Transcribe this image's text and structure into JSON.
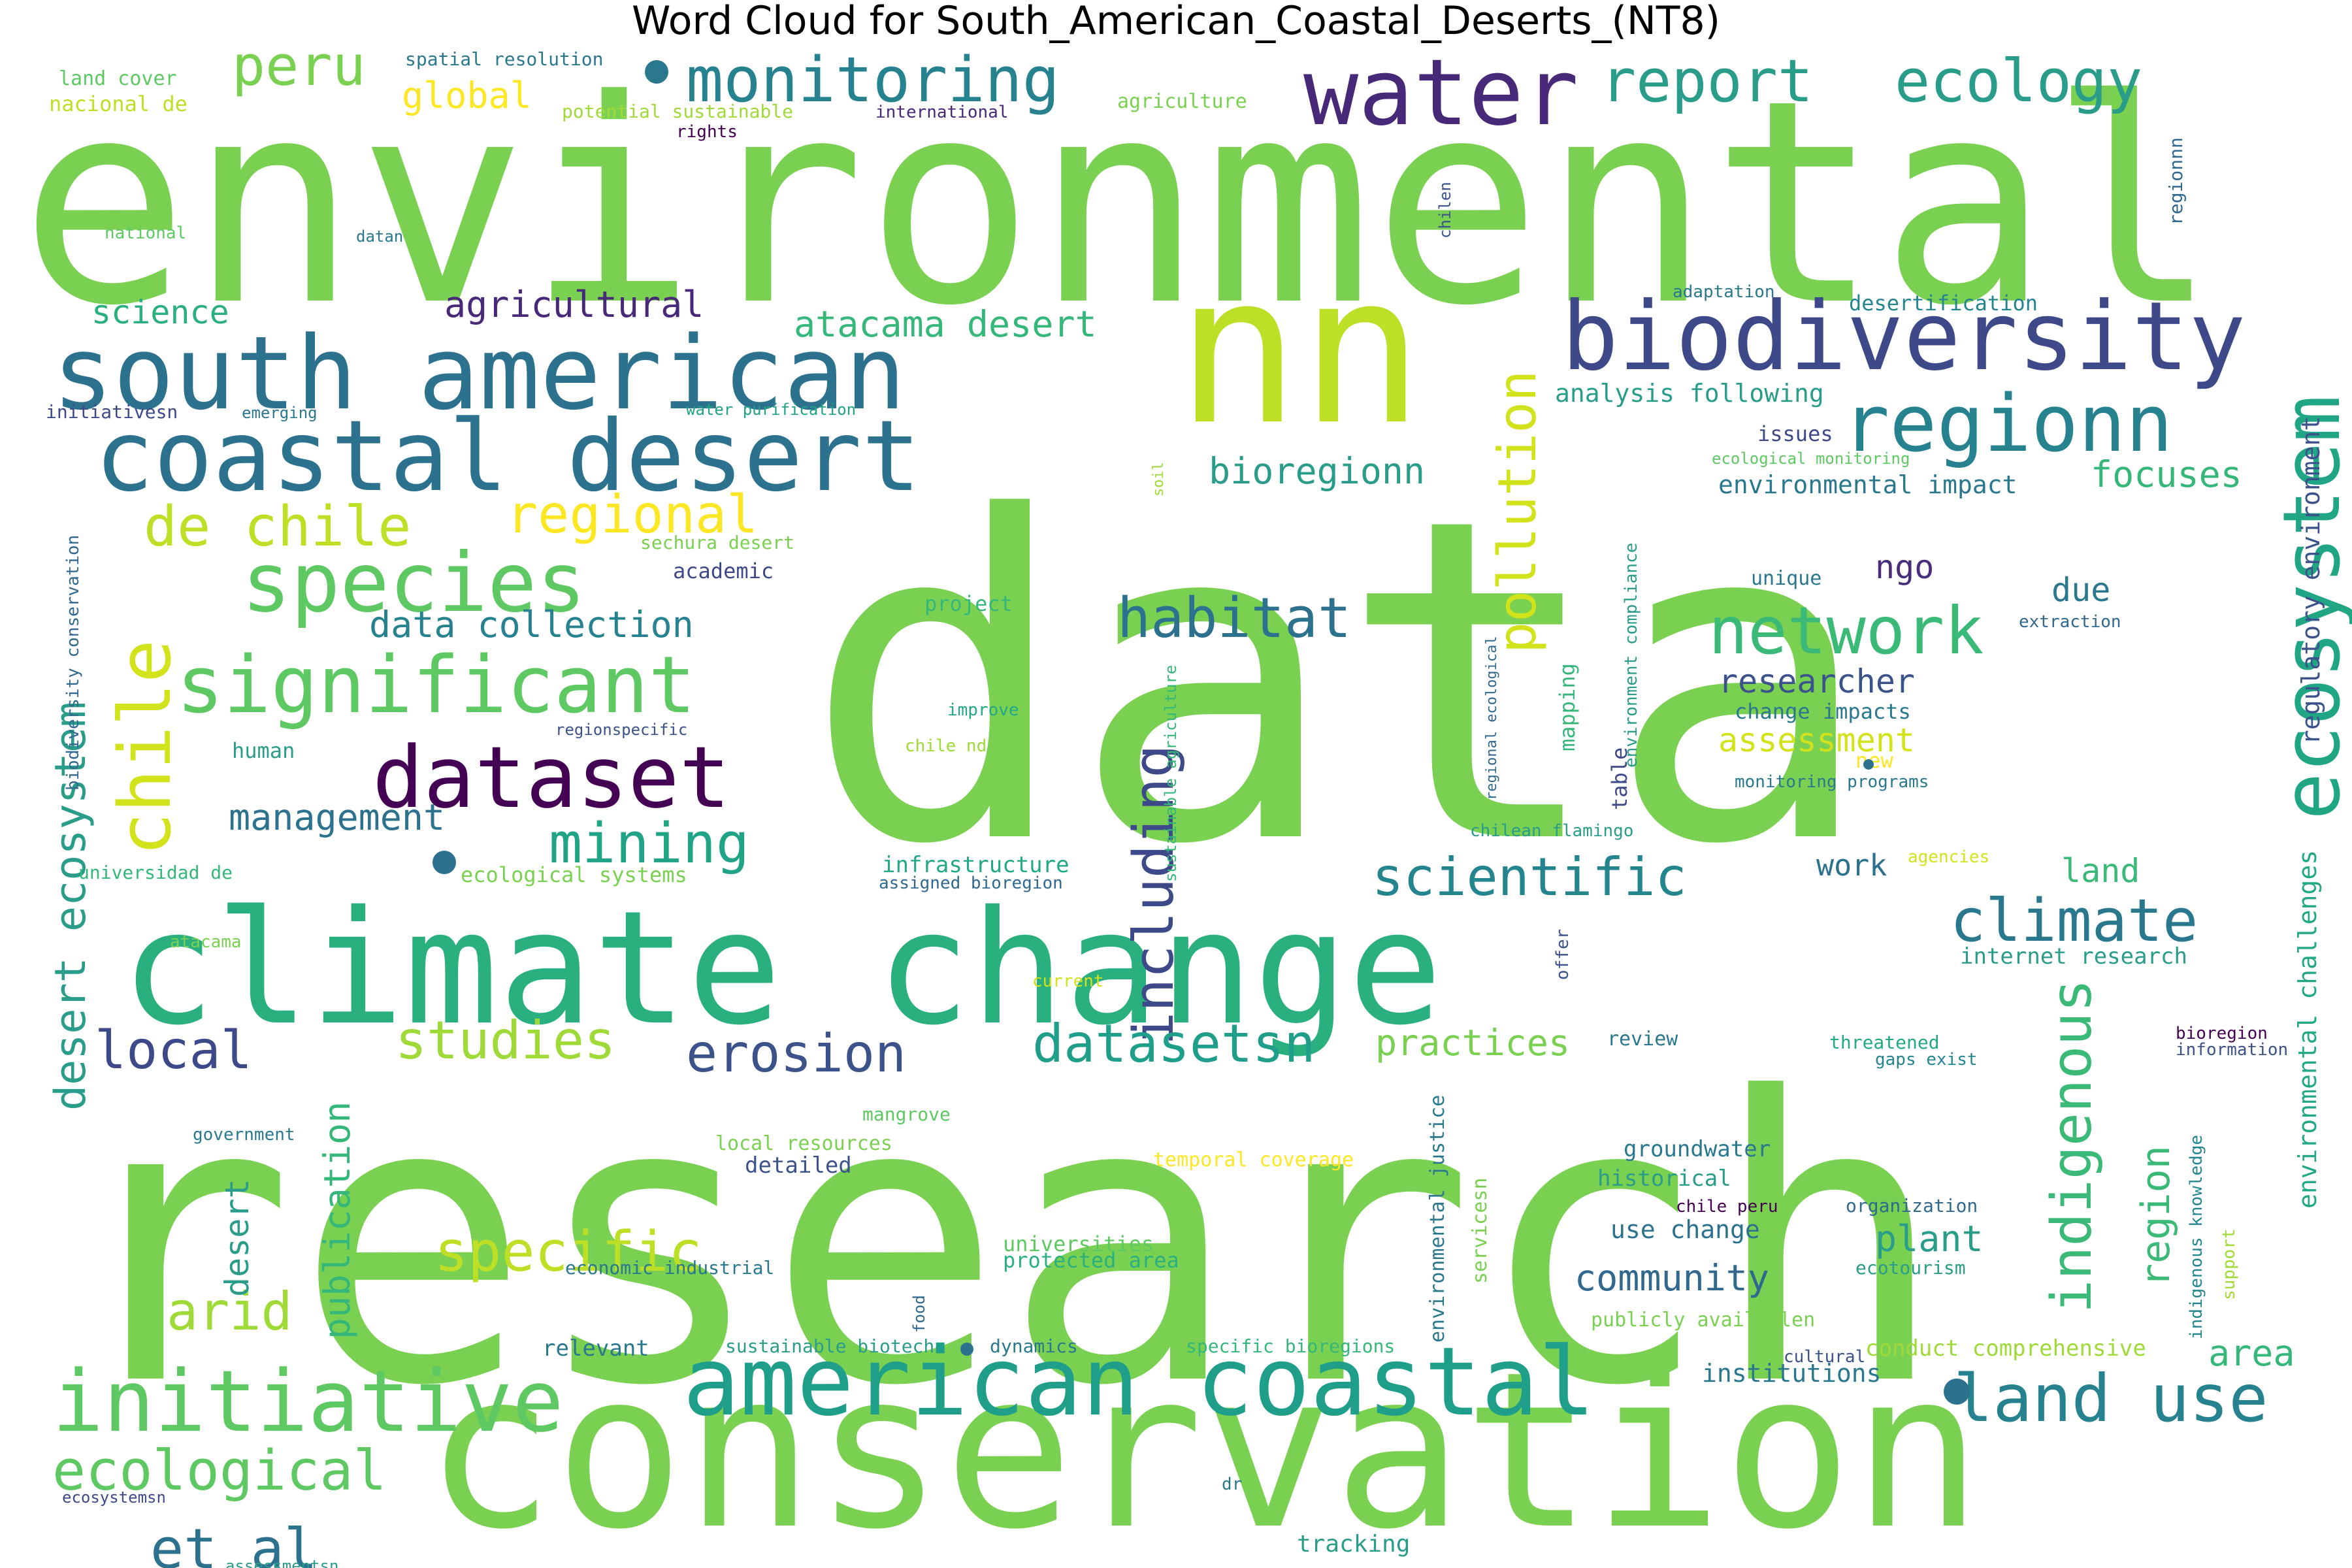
{
  "chart_data": {
    "type": "wordcloud",
    "title": "Word Cloud for South_American_Coastal_Deserts_(NT8)",
    "colormap": "viridis",
    "background": "#ffffff",
    "words": [
      {
        "text": "data",
        "weight": 100,
        "color": "#7ad151"
      },
      {
        "text": "research",
        "weight": 84,
        "color": "#7ad151"
      },
      {
        "text": "environmental",
        "weight": 68,
        "color": "#7ad151"
      },
      {
        "text": "conservation",
        "weight": 60,
        "color": "#7ad151"
      },
      {
        "text": "climate change",
        "weight": 42,
        "color": "#2ab07f"
      },
      {
        "text": "nn",
        "weight": 40,
        "color": "#bddf26"
      },
      {
        "text": "water",
        "weight": 20,
        "color": "#482878"
      },
      {
        "text": "south american",
        "weight": 20,
        "color": "#2c728e"
      },
      {
        "text": "biodiversity",
        "weight": 18,
        "color": "#3e4989"
      },
      {
        "text": "coastal desert",
        "weight": 19,
        "color": "#2c728e"
      },
      {
        "text": "american coastal",
        "weight": 19,
        "color": "#1f9e89"
      },
      {
        "text": "significant",
        "weight": 16,
        "color": "#5ec962"
      },
      {
        "text": "species",
        "weight": 15,
        "color": "#5ec962"
      },
      {
        "text": "initiative",
        "weight": 16,
        "color": "#5ec962"
      },
      {
        "text": "dataset",
        "weight": 14,
        "color": "#440154"
      },
      {
        "text": "regionn",
        "weight": 14,
        "color": "#26828e"
      },
      {
        "text": "ecosystem",
        "weight": 13,
        "color": "#21a685"
      },
      {
        "text": "monitoring",
        "weight": 11,
        "color": "#26828e"
      },
      {
        "text": "report",
        "weight": 10,
        "color": "#2a9d8a"
      },
      {
        "text": "ecology",
        "weight": 10,
        "color": "#2a9d8a"
      },
      {
        "text": "chile",
        "weight": 13,
        "color": "#d2e21b"
      },
      {
        "text": "network",
        "weight": 11,
        "color": "#3aba76"
      },
      {
        "text": "land use",
        "weight": 11,
        "color": "#26828e"
      },
      {
        "text": "including",
        "weight": 10,
        "color": "#3e4989"
      },
      {
        "text": "climate",
        "weight": 10,
        "color": "#2a788e"
      },
      {
        "text": "indigenous",
        "weight": 10,
        "color": "#3aba76"
      },
      {
        "text": "conservation",
        "weight": 60,
        "color": "#7ad151"
      },
      {
        "text": "ecological",
        "weight": 9,
        "color": "#5ec962"
      },
      {
        "text": "pollution",
        "weight": 9,
        "color": "#d2e21b"
      },
      {
        "text": "de chile",
        "weight": 9,
        "color": "#bddf26"
      },
      {
        "text": "regional",
        "weight": 9,
        "color": "#fde725"
      },
      {
        "text": "peru",
        "weight": 9,
        "color": "#7ad151"
      },
      {
        "text": "mining",
        "weight": 9,
        "color": "#20a386"
      },
      {
        "text": "habitat",
        "weight": 9,
        "color": "#2c728e"
      },
      {
        "text": "scientific",
        "weight": 8,
        "color": "#25858e"
      },
      {
        "text": "erosion",
        "weight": 8,
        "color": "#3b528b"
      },
      {
        "text": "datasetsn",
        "weight": 8,
        "color": "#1f9e89"
      },
      {
        "text": "studies",
        "weight": 8,
        "color": "#a0da39"
      },
      {
        "text": "specific",
        "weight": 8,
        "color": "#bddf26"
      },
      {
        "text": "local",
        "weight": 8,
        "color": "#3e4989"
      },
      {
        "text": "arid",
        "weight": 8,
        "color": "#a0da39"
      },
      {
        "text": "et al",
        "weight": 8,
        "color": "#2c728e"
      },
      {
        "text": "desert ecosystem",
        "weight": 6,
        "color": "#2a9d8a"
      },
      {
        "text": "atacama desert",
        "weight": 5,
        "color": "#35b779"
      },
      {
        "text": "agricultural",
        "weight": 5,
        "color": "#482878"
      },
      {
        "text": "data collection",
        "weight": 5,
        "color": "#26828e"
      },
      {
        "text": "management",
        "weight": 5,
        "color": "#2c728e"
      },
      {
        "text": "bioregionn",
        "weight": 5,
        "color": "#2a9d8a"
      },
      {
        "text": "focuses",
        "weight": 5,
        "color": "#35b779"
      },
      {
        "text": "region",
        "weight": 5,
        "color": "#3aba76"
      },
      {
        "text": "plant",
        "weight": 5,
        "color": "#2a9d8a"
      },
      {
        "text": "community",
        "weight": 5,
        "color": "#31688e"
      },
      {
        "text": "publication",
        "weight": 5,
        "color": "#35b779"
      },
      {
        "text": "practices",
        "weight": 5,
        "color": "#7ad151"
      },
      {
        "text": "researcher",
        "weight": 5,
        "color": "#3b528b"
      },
      {
        "text": "assessment",
        "weight": 5,
        "color": "#d2e21b"
      },
      {
        "text": "desert",
        "weight": 5,
        "color": "#2a9d8a"
      },
      {
        "text": "global",
        "weight": 5,
        "color": "#fde725"
      },
      {
        "text": "science",
        "weight": 4,
        "color": "#2ab07f"
      },
      {
        "text": "due",
        "weight": 4,
        "color": "#2a788e"
      },
      {
        "text": "ngo",
        "weight": 4,
        "color": "#472d7b"
      },
      {
        "text": "work",
        "weight": 4,
        "color": "#2c728e"
      },
      {
        "text": "land",
        "weight": 4,
        "color": "#3aba76"
      },
      {
        "text": "area",
        "weight": 4,
        "color": "#35b779"
      },
      {
        "text": "environmental challenges",
        "weight": 3,
        "color": "#22a884"
      },
      {
        "text": "regulatory environment",
        "weight": 3,
        "color": "#3b528b"
      }
    ]
  },
  "small_words": [
    {
      "text": "land cover",
      "color": "#5ec962"
    },
    {
      "text": "spatial resolution",
      "color": "#2a788e"
    },
    {
      "text": "nacional de",
      "color": "#bddf26"
    },
    {
      "text": "potential sustainable",
      "color": "#a0da39"
    },
    {
      "text": "international",
      "color": "#482878"
    },
    {
      "text": "agriculture",
      "color": "#7ad151"
    },
    {
      "text": "rights",
      "color": "#440154"
    },
    {
      "text": "national",
      "color": "#5ec962"
    },
    {
      "text": "datan",
      "color": "#2a788e"
    },
    {
      "text": "chilen",
      "color": "#3b528b"
    },
    {
      "text": "regionnn",
      "color": "#31688e"
    },
    {
      "text": "adaptation",
      "color": "#2a788e"
    },
    {
      "text": "desertification",
      "color": "#25858e"
    },
    {
      "text": "initiativesn",
      "color": "#3e4989"
    },
    {
      "text": "emerging",
      "color": "#2a788e"
    },
    {
      "text": "water purification",
      "color": "#20a386"
    },
    {
      "text": "analysis following",
      "color": "#2a9d8a"
    },
    {
      "text": "issues",
      "color": "#3e4989"
    },
    {
      "text": "ecological monitoring",
      "color": "#5ec962"
    },
    {
      "text": "environmental impact",
      "color": "#2a788e"
    },
    {
      "text": "soil",
      "color": "#a0da39"
    },
    {
      "text": "biodiversity conservation",
      "color": "#31688e"
    },
    {
      "text": "sechura desert",
      "color": "#7ad151"
    },
    {
      "text": "academic",
      "color": "#3e4989"
    },
    {
      "text": "unique",
      "color": "#2a788e"
    },
    {
      "text": "project",
      "color": "#35b779"
    },
    {
      "text": "environment compliance",
      "color": "#2a9d8a"
    },
    {
      "text": "extraction",
      "color": "#31688e"
    },
    {
      "text": "change impacts",
      "color": "#2a788e"
    },
    {
      "text": "improve",
      "color": "#22a884"
    },
    {
      "text": "regionspecific",
      "color": "#3b528b"
    },
    {
      "text": "human",
      "color": "#2a9d8a"
    },
    {
      "text": "chile nd",
      "color": "#a0da39"
    },
    {
      "text": "mapping",
      "color": "#35b779"
    },
    {
      "text": "regional ecological",
      "color": "#31688e"
    },
    {
      "text": "sustainable agriculture",
      "color": "#35b779"
    },
    {
      "text": "table",
      "color": "#3e4989"
    },
    {
      "text": "new",
      "color": "#fde725"
    },
    {
      "text": "monitoring programs",
      "color": "#2a788e"
    },
    {
      "text": "chilean flamingo",
      "color": "#2a9d8a"
    },
    {
      "text": "universidad de",
      "color": "#35b779"
    },
    {
      "text": "ecological systems",
      "color": "#7ad151"
    },
    {
      "text": "infrastructure",
      "color": "#22a884"
    },
    {
      "text": "assigned bioregion",
      "color": "#31688e"
    },
    {
      "text": "agencies",
      "color": "#d2e21b"
    },
    {
      "text": "atacama",
      "color": "#7ad151"
    },
    {
      "text": "offer",
      "color": "#3b528b"
    },
    {
      "text": "internet research",
      "color": "#2a9d8a"
    },
    {
      "text": "current",
      "color": "#d2e21b"
    },
    {
      "text": "review",
      "color": "#2a788e"
    },
    {
      "text": "threatened",
      "color": "#22a884"
    },
    {
      "text": "gaps exist",
      "color": "#25858e"
    },
    {
      "text": "bioregion",
      "color": "#440154"
    },
    {
      "text": "information",
      "color": "#3b528b"
    },
    {
      "text": "government",
      "color": "#2a788e"
    },
    {
      "text": "mangrove",
      "color": "#5ec962"
    },
    {
      "text": "local resources",
      "color": "#7ad151"
    },
    {
      "text": "detailed",
      "color": "#3b528b"
    },
    {
      "text": "temporal coverage",
      "color": "#fde725"
    },
    {
      "text": "environmental justice",
      "color": "#2a788e"
    },
    {
      "text": "groundwater",
      "color": "#2a788e"
    },
    {
      "text": "historical",
      "color": "#2a9d8a"
    },
    {
      "text": "chile peru",
      "color": "#440154"
    },
    {
      "text": "organization",
      "color": "#31688e"
    },
    {
      "text": "indigenous knowledge",
      "color": "#25858e"
    },
    {
      "text": "use change",
      "color": "#2c728e"
    },
    {
      "text": "universities",
      "color": "#5ec962"
    },
    {
      "text": "protected area",
      "color": "#2ab07f"
    },
    {
      "text": "economic industrial",
      "color": "#2a788e"
    },
    {
      "text": "food",
      "color": "#31688e"
    },
    {
      "text": "servicesn",
      "color": "#7ad151"
    },
    {
      "text": "ecotourism",
      "color": "#2a9d8a"
    },
    {
      "text": "support",
      "color": "#a0da39"
    },
    {
      "text": "relevant",
      "color": "#2a788e"
    },
    {
      "text": "sustainable biotech",
      "color": "#2a9d8a"
    },
    {
      "text": "dynamics",
      "color": "#2a788e"
    },
    {
      "text": "specific bioregions",
      "color": "#35b779"
    },
    {
      "text": "publicly availablen",
      "color": "#7ad151"
    },
    {
      "text": "conduct comprehensive",
      "color": "#a0da39"
    },
    {
      "text": "cultural",
      "color": "#3b528b"
    },
    {
      "text": "institutions",
      "color": "#2a788e"
    },
    {
      "text": "ecosystemsn",
      "color": "#3e4989"
    },
    {
      "text": "dr",
      "color": "#2a788e"
    },
    {
      "text": "tracking",
      "color": "#2a9d8a"
    },
    {
      "text": "assessmentsn",
      "color": "#2a9d8a"
    }
  ]
}
